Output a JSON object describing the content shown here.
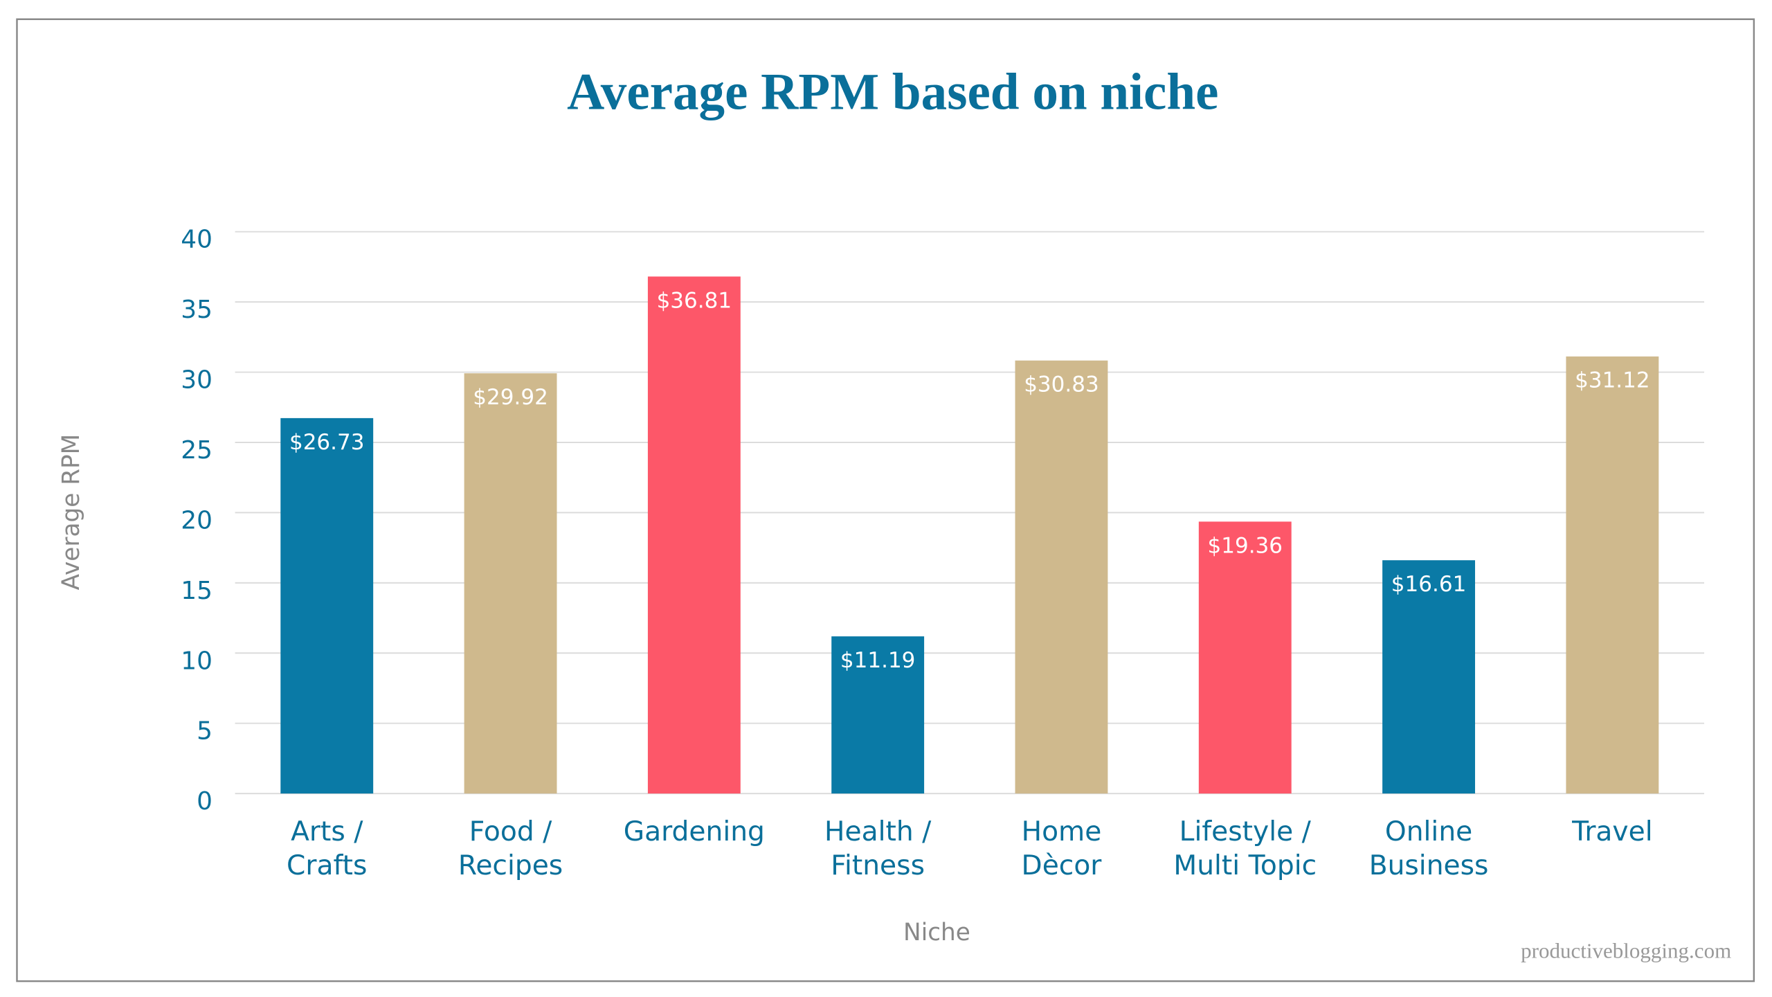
{
  "chart_data": {
    "type": "bar",
    "title": "Average RPM based on niche",
    "x_label": "Niche",
    "y_label": "Average RPM",
    "source": "productiveblogging.com",
    "categories": [
      "Arts / Crafts",
      "Food / Recipes",
      "Gardening",
      "Health / Fitness",
      "Home Dècor",
      "Lifestyle / Multi Topic",
      "Online Business",
      "Travel"
    ],
    "values": [
      26.73,
      29.92,
      36.81,
      11.19,
      30.83,
      19.36,
      16.61,
      31.12
    ],
    "value_labels": [
      "$26.73",
      "$29.92",
      "$36.81",
      "$11.19",
      "$30.83",
      "$19.36",
      "$16.61",
      "$31.12"
    ],
    "colors": [
      "#0a7aa6",
      "#cfb98d",
      "#fd5769",
      "#0a7aa6",
      "#cfb98d",
      "#fd5769",
      "#0a7aa6",
      "#cfb98d"
    ],
    "ylim": [
      0,
      40
    ],
    "yticks": [
      0,
      5,
      10,
      15,
      20,
      25,
      30,
      35,
      40
    ],
    "grid": true
  }
}
